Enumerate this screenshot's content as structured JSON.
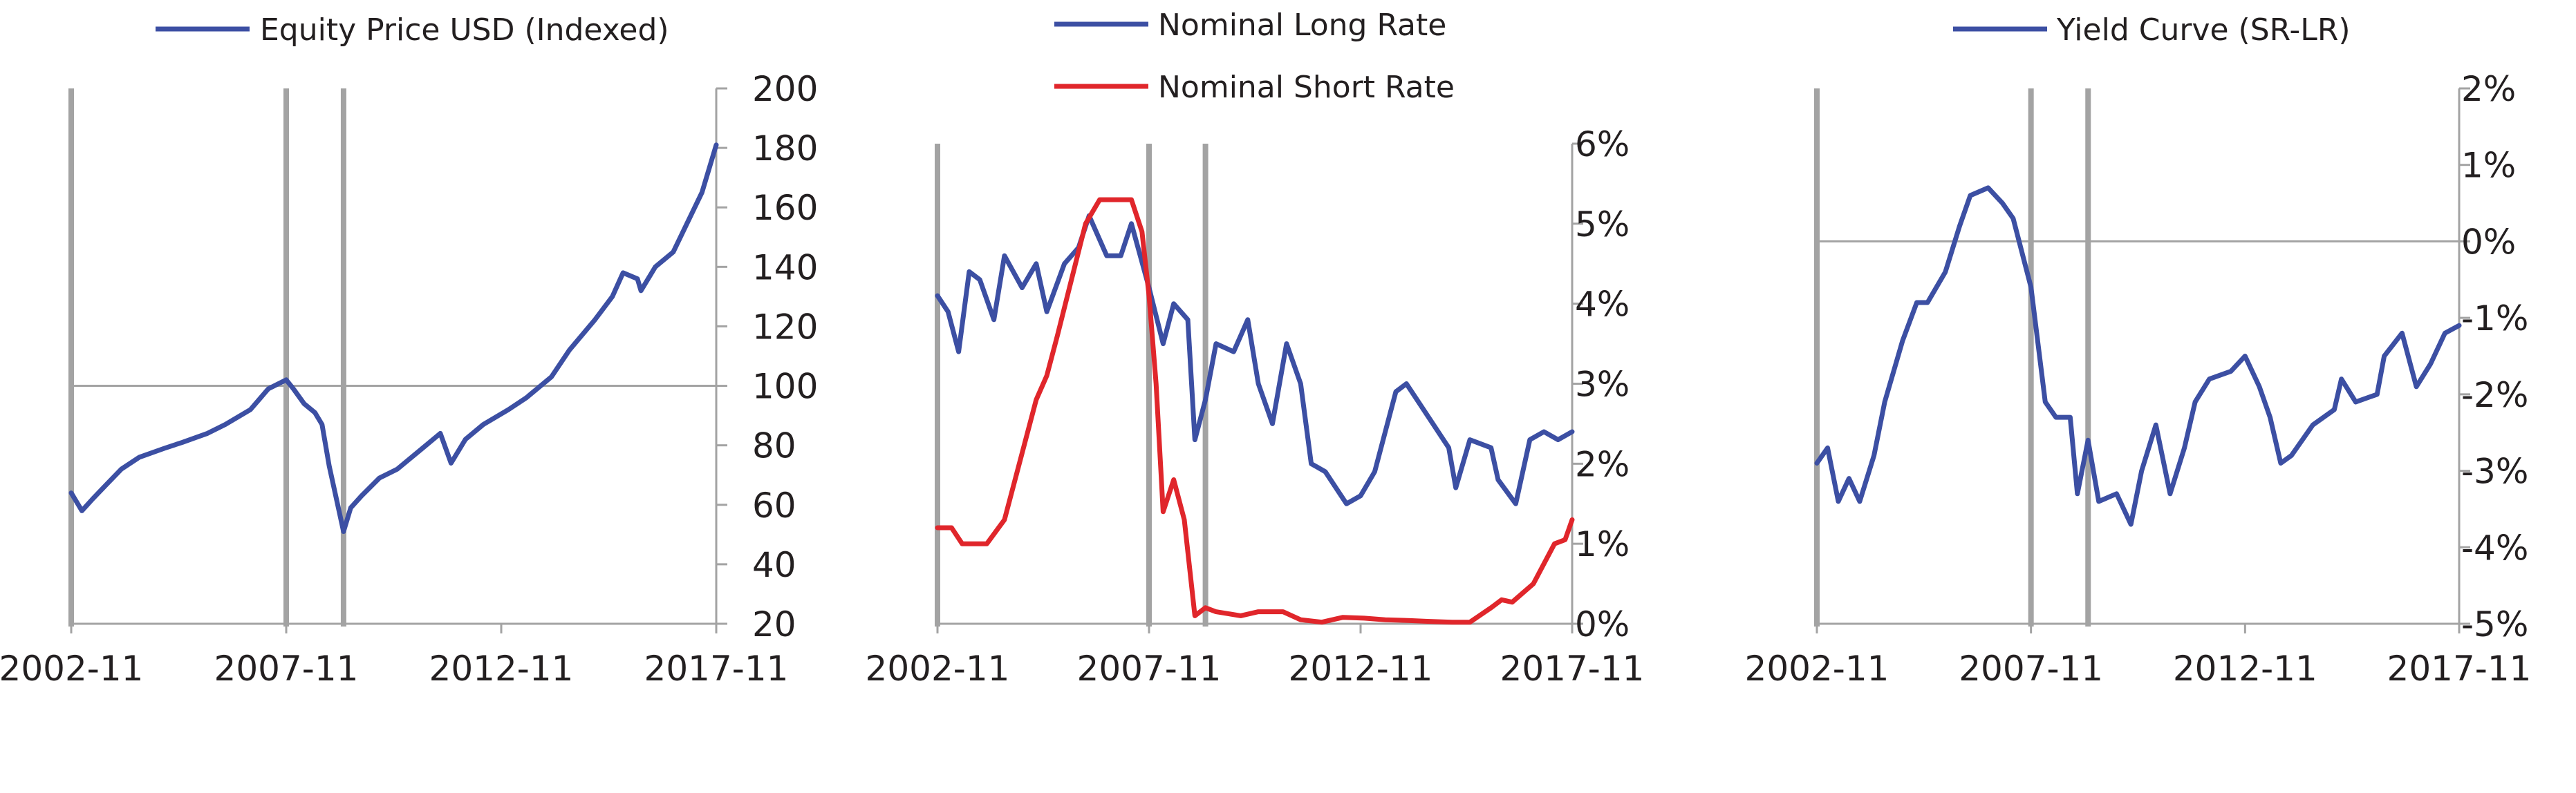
{
  "colors": {
    "blue": "#3c4fa3",
    "red": "#e0262b",
    "axis": "#a3a3a3",
    "text": "#231f20"
  },
  "chart_data": [
    {
      "type": "line",
      "title": "",
      "xlabel": "",
      "ylabel": "",
      "x_tick_labels": [
        "2002-11",
        "2007-11",
        "2012-11",
        "2017-11"
      ],
      "y_tick_labels": [
        "20",
        "40",
        "60",
        "80",
        "100",
        "120",
        "140",
        "160",
        "180",
        "200"
      ],
      "ylim": [
        20,
        200
      ],
      "y_axis_side": "right",
      "reference_line": 100,
      "recession_lines": [
        "2002-11",
        "2007-11",
        "2009-03"
      ],
      "legend": [
        "Equity Price USD (Indexed)"
      ],
      "series": [
        {
          "name": "Equity Price USD (Indexed)",
          "color": "#3c4fa3",
          "points": [
            [
              "2002-11",
              64
            ],
            [
              "2003-02",
              58
            ],
            [
              "2003-05",
              62
            ],
            [
              "2003-09",
              67
            ],
            [
              "2004-01",
              72
            ],
            [
              "2004-06",
              76
            ],
            [
              "2005-01",
              79
            ],
            [
              "2005-06",
              81
            ],
            [
              "2006-01",
              84
            ],
            [
              "2006-06",
              87
            ],
            [
              "2007-01",
              92
            ],
            [
              "2007-06",
              99
            ],
            [
              "2007-11",
              102
            ],
            [
              "2008-01",
              99
            ],
            [
              "2008-04",
              94
            ],
            [
              "2008-07",
              91
            ],
            [
              "2008-09",
              87
            ],
            [
              "2008-11",
              73
            ],
            [
              "2009-01",
              62
            ],
            [
              "2009-03",
              51
            ],
            [
              "2009-05",
              59
            ],
            [
              "2009-08",
              63
            ],
            [
              "2010-01",
              69
            ],
            [
              "2010-06",
              72
            ],
            [
              "2011-01",
              79
            ],
            [
              "2011-06",
              84
            ],
            [
              "2011-09",
              74
            ],
            [
              "2012-01",
              82
            ],
            [
              "2012-06",
              87
            ],
            [
              "2013-01",
              92
            ],
            [
              "2013-06",
              96
            ],
            [
              "2014-01",
              103
            ],
            [
              "2014-06",
              112
            ],
            [
              "2015-01",
              122
            ],
            [
              "2015-06",
              130
            ],
            [
              "2015-09",
              138
            ],
            [
              "2016-01",
              136
            ],
            [
              "2016-02",
              132
            ],
            [
              "2016-06",
              140
            ],
            [
              "2016-11",
              145
            ],
            [
              "2017-03",
              155
            ],
            [
              "2017-07",
              165
            ],
            [
              "2017-11",
              181
            ]
          ]
        }
      ]
    },
    {
      "type": "line",
      "title": "",
      "xlabel": "",
      "ylabel": "",
      "x_tick_labels": [
        "2002-11",
        "2007-11",
        "2012-11",
        "2017-11"
      ],
      "y_tick_labels": [
        "0%",
        "1%",
        "2%",
        "3%",
        "4%",
        "5%",
        "6%"
      ],
      "ylim": [
        0,
        6
      ],
      "y_axis_side": "right",
      "recession_lines": [
        "2002-11",
        "2007-11",
        "2009-03"
      ],
      "legend": [
        "Nominal Long Rate",
        "Nominal Short Rate"
      ],
      "series": [
        {
          "name": "Nominal Long Rate",
          "color": "#3c4fa3",
          "points": [
            [
              "2002-11",
              4.1
            ],
            [
              "2003-02",
              3.9
            ],
            [
              "2003-05",
              3.4
            ],
            [
              "2003-08",
              4.4
            ],
            [
              "2003-11",
              4.3
            ],
            [
              "2004-03",
              3.8
            ],
            [
              "2004-06",
              4.6
            ],
            [
              "2004-11",
              4.2
            ],
            [
              "2005-03",
              4.5
            ],
            [
              "2005-06",
              3.9
            ],
            [
              "2005-11",
              4.5
            ],
            [
              "2006-03",
              4.7
            ],
            [
              "2006-06",
              5.1
            ],
            [
              "2006-11",
              4.6
            ],
            [
              "2007-03",
              4.6
            ],
            [
              "2007-06",
              5.0
            ],
            [
              "2007-11",
              4.2
            ],
            [
              "2008-03",
              3.5
            ],
            [
              "2008-06",
              4.0
            ],
            [
              "2008-10",
              3.8
            ],
            [
              "2008-12",
              2.3
            ],
            [
              "2009-03",
              2.8
            ],
            [
              "2009-06",
              3.5
            ],
            [
              "2009-11",
              3.4
            ],
            [
              "2010-03",
              3.8
            ],
            [
              "2010-06",
              3.0
            ],
            [
              "2010-10",
              2.5
            ],
            [
              "2011-02",
              3.5
            ],
            [
              "2011-06",
              3.0
            ],
            [
              "2011-09",
              2.0
            ],
            [
              "2012-01",
              1.9
            ],
            [
              "2012-07",
              1.5
            ],
            [
              "2012-11",
              1.6
            ],
            [
              "2013-03",
              1.9
            ],
            [
              "2013-06",
              2.4
            ],
            [
              "2013-09",
              2.9
            ],
            [
              "2013-12",
              3.0
            ],
            [
              "2014-06",
              2.6
            ],
            [
              "2014-12",
              2.2
            ],
            [
              "2015-02",
              1.7
            ],
            [
              "2015-06",
              2.3
            ],
            [
              "2015-12",
              2.2
            ],
            [
              "2016-02",
              1.8
            ],
            [
              "2016-07",
              1.5
            ],
            [
              "2016-11",
              2.3
            ],
            [
              "2017-03",
              2.4
            ],
            [
              "2017-07",
              2.3
            ],
            [
              "2017-11",
              2.4
            ]
          ]
        },
        {
          "name": "Nominal Short Rate",
          "color": "#e0262b",
          "points": [
            [
              "2002-11",
              1.2
            ],
            [
              "2003-03",
              1.2
            ],
            [
              "2003-06",
              1.0
            ],
            [
              "2003-09",
              1.0
            ],
            [
              "2004-01",
              1.0
            ],
            [
              "2004-06",
              1.3
            ],
            [
              "2004-09",
              1.8
            ],
            [
              "2004-12",
              2.3
            ],
            [
              "2005-03",
              2.8
            ],
            [
              "2005-06",
              3.1
            ],
            [
              "2005-09",
              3.6
            ],
            [
              "2006-01",
              4.3
            ],
            [
              "2006-05",
              5.0
            ],
            [
              "2006-09",
              5.3
            ],
            [
              "2007-03",
              5.3
            ],
            [
              "2007-06",
              5.3
            ],
            [
              "2007-09",
              4.9
            ],
            [
              "2007-11",
              4.1
            ],
            [
              "2008-01",
              3.0
            ],
            [
              "2008-03",
              1.4
            ],
            [
              "2008-06",
              1.8
            ],
            [
              "2008-09",
              1.3
            ],
            [
              "2008-12",
              0.1
            ],
            [
              "2009-03",
              0.2
            ],
            [
              "2009-06",
              0.15
            ],
            [
              "2010-01",
              0.1
            ],
            [
              "2010-06",
              0.15
            ],
            [
              "2011-01",
              0.15
            ],
            [
              "2011-06",
              0.05
            ],
            [
              "2011-12",
              0.02
            ],
            [
              "2012-06",
              0.08
            ],
            [
              "2012-12",
              0.07
            ],
            [
              "2013-06",
              0.05
            ],
            [
              "2014-01",
              0.04
            ],
            [
              "2014-06",
              0.03
            ],
            [
              "2015-01",
              0.02
            ],
            [
              "2015-06",
              0.02
            ],
            [
              "2015-12",
              0.2
            ],
            [
              "2016-03",
              0.3
            ],
            [
              "2016-06",
              0.27
            ],
            [
              "2016-12",
              0.5
            ],
            [
              "2017-03",
              0.75
            ],
            [
              "2017-06",
              1.0
            ],
            [
              "2017-09",
              1.05
            ],
            [
              "2017-11",
              1.3
            ]
          ]
        }
      ]
    },
    {
      "type": "line",
      "title": "",
      "xlabel": "",
      "ylabel": "",
      "x_tick_labels": [
        "2002-11",
        "2007-11",
        "2012-11",
        "2017-11"
      ],
      "y_tick_labels": [
        "-5%",
        "-4%",
        "-3%",
        "-2%",
        "-1%",
        "0%",
        "1%",
        "2%"
      ],
      "ylim": [
        -5,
        2
      ],
      "y_axis_side": "right",
      "reference_line": 0,
      "recession_lines": [
        "2002-11",
        "2007-11",
        "2009-03"
      ],
      "legend": [
        "Yield Curve (SR-LR)"
      ],
      "series": [
        {
          "name": "Yield Curve (SR-LR)",
          "color": "#3c4fa3",
          "points": [
            [
              "2002-11",
              -2.9
            ],
            [
              "2003-02",
              -2.7
            ],
            [
              "2003-05",
              -3.4
            ],
            [
              "2003-08",
              -3.1
            ],
            [
              "2003-11",
              -3.4
            ],
            [
              "2004-03",
              -2.8
            ],
            [
              "2004-06",
              -2.1
            ],
            [
              "2004-11",
              -1.3
            ],
            [
              "2005-03",
              -0.8
            ],
            [
              "2005-06",
              -0.8
            ],
            [
              "2005-11",
              -0.4
            ],
            [
              "2006-03",
              0.2
            ],
            [
              "2006-06",
              0.6
            ],
            [
              "2006-11",
              0.7
            ],
            [
              "2007-03",
              0.5
            ],
            [
              "2007-06",
              0.3
            ],
            [
              "2007-11",
              -0.6
            ],
            [
              "2008-03",
              -2.1
            ],
            [
              "2008-06",
              -2.3
            ],
            [
              "2008-10",
              -2.3
            ],
            [
              "2008-12",
              -3.3
            ],
            [
              "2009-03",
              -2.6
            ],
            [
              "2009-06",
              -3.4
            ],
            [
              "2009-11",
              -3.3
            ],
            [
              "2010-03",
              -3.7
            ],
            [
              "2010-06",
              -3.0
            ],
            [
              "2010-10",
              -2.4
            ],
            [
              "2011-02",
              -3.3
            ],
            [
              "2011-06",
              -2.7
            ],
            [
              "2011-09",
              -2.1
            ],
            [
              "2012-01",
              -1.8
            ],
            [
              "2012-07",
              -1.7
            ],
            [
              "2012-11",
              -1.5
            ],
            [
              "2013-03",
              -1.9
            ],
            [
              "2013-06",
              -2.3
            ],
            [
              "2013-09",
              -2.9
            ],
            [
              "2013-12",
              -2.8
            ],
            [
              "2014-06",
              -2.4
            ],
            [
              "2014-12",
              -2.2
            ],
            [
              "2015-02",
              -1.8
            ],
            [
              "2015-06",
              -2.1
            ],
            [
              "2015-12",
              -2.0
            ],
            [
              "2016-02",
              -1.5
            ],
            [
              "2016-07",
              -1.2
            ],
            [
              "2016-11",
              -1.9
            ],
            [
              "2017-03",
              -1.6
            ],
            [
              "2017-07",
              -1.2
            ],
            [
              "2017-11",
              -1.1
            ]
          ]
        }
      ]
    }
  ]
}
